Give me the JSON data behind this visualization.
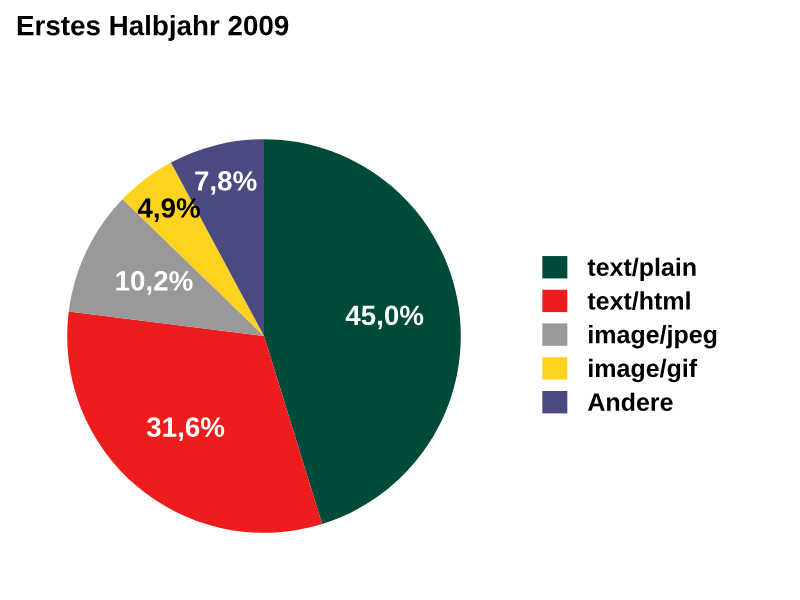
{
  "chart_data": {
    "type": "pie",
    "title": "Erstes Halbjahr 2009",
    "categories": [
      "text/plain",
      "text/html",
      "image/jpeg",
      "image/gif",
      "Andere"
    ],
    "values": [
      45.0,
      31.6,
      10.2,
      4.9,
      7.8
    ],
    "value_labels": [
      "45,0%",
      "31,6%",
      "10,2%",
      "4,9%",
      "7,8%"
    ],
    "colors": [
      "#004a3a",
      "#ee1c1c",
      "#999999",
      "#ffd21f",
      "#4a4a80"
    ],
    "legend": "right"
  }
}
